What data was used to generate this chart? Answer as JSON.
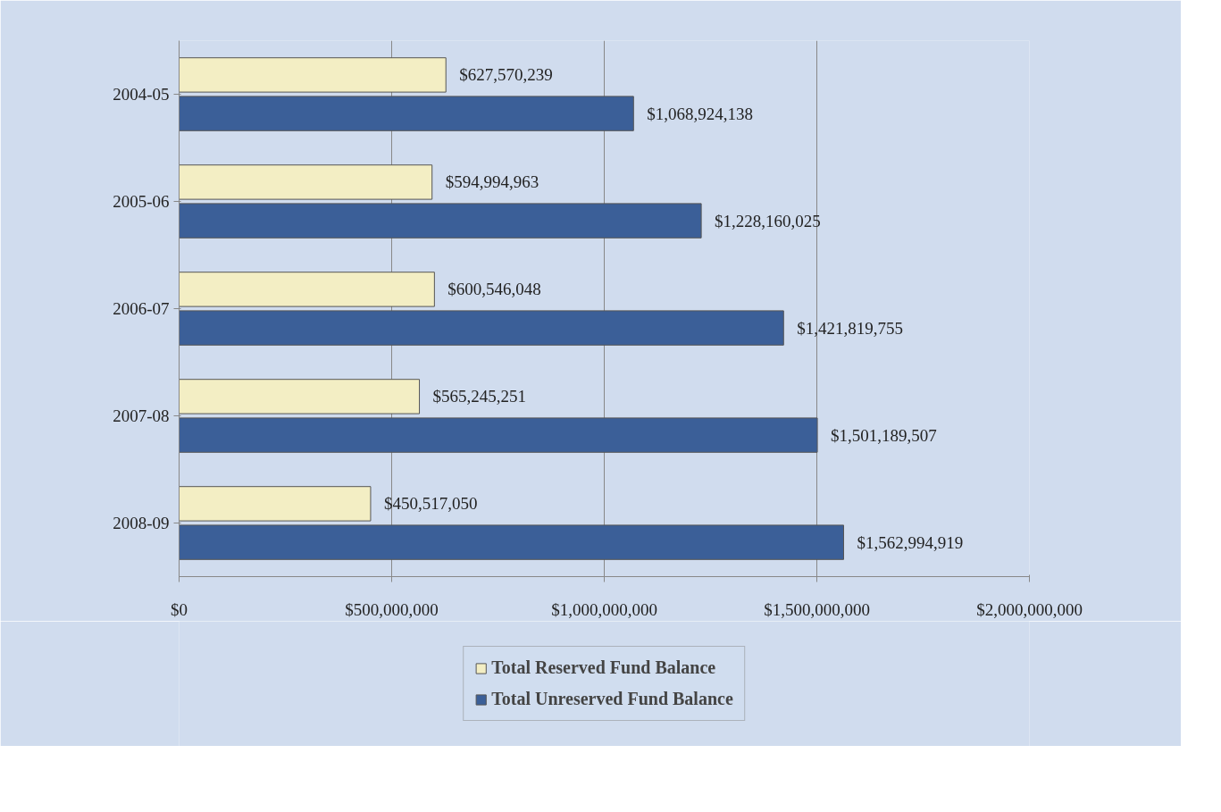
{
  "chart_data": {
    "type": "bar",
    "orientation": "horizontal",
    "categories": [
      "2004-05",
      "2005-06",
      "2006-07",
      "2007-08",
      "2008-09"
    ],
    "series": [
      {
        "name": "Total Reserved Fund Balance",
        "color": "#f3eec4",
        "values": [
          627570239,
          594994963,
          600546048,
          565245251,
          450517050
        ],
        "value_labels": [
          "$627,570,239",
          "$594,994,963",
          "$600,546,048",
          "$565,245,251",
          "$450,517,050"
        ]
      },
      {
        "name": "Total Unreserved Fund Balance",
        "color": "#3b5f98",
        "values": [
          1068924138,
          1228160025,
          1421819755,
          1501189507,
          1562994919
        ],
        "value_labels": [
          "$1,068,924,138",
          "$1,228,160,025",
          "$1,421,819,755",
          "$1,501,189,507",
          "$1,562,994,919"
        ]
      }
    ],
    "xlim": [
      0,
      2000000000
    ],
    "xticks": [
      {
        "value": 0,
        "label": "$0"
      },
      {
        "value": 500000000,
        "label": "$500,000,000"
      },
      {
        "value": 1000000000,
        "label": "$1,000,000,000"
      },
      {
        "value": 1500000000,
        "label": "$1,500,000,000"
      },
      {
        "value": 2000000000,
        "label": "$2,000,000,000"
      }
    ],
    "grid": "x",
    "legend": "bottom"
  }
}
